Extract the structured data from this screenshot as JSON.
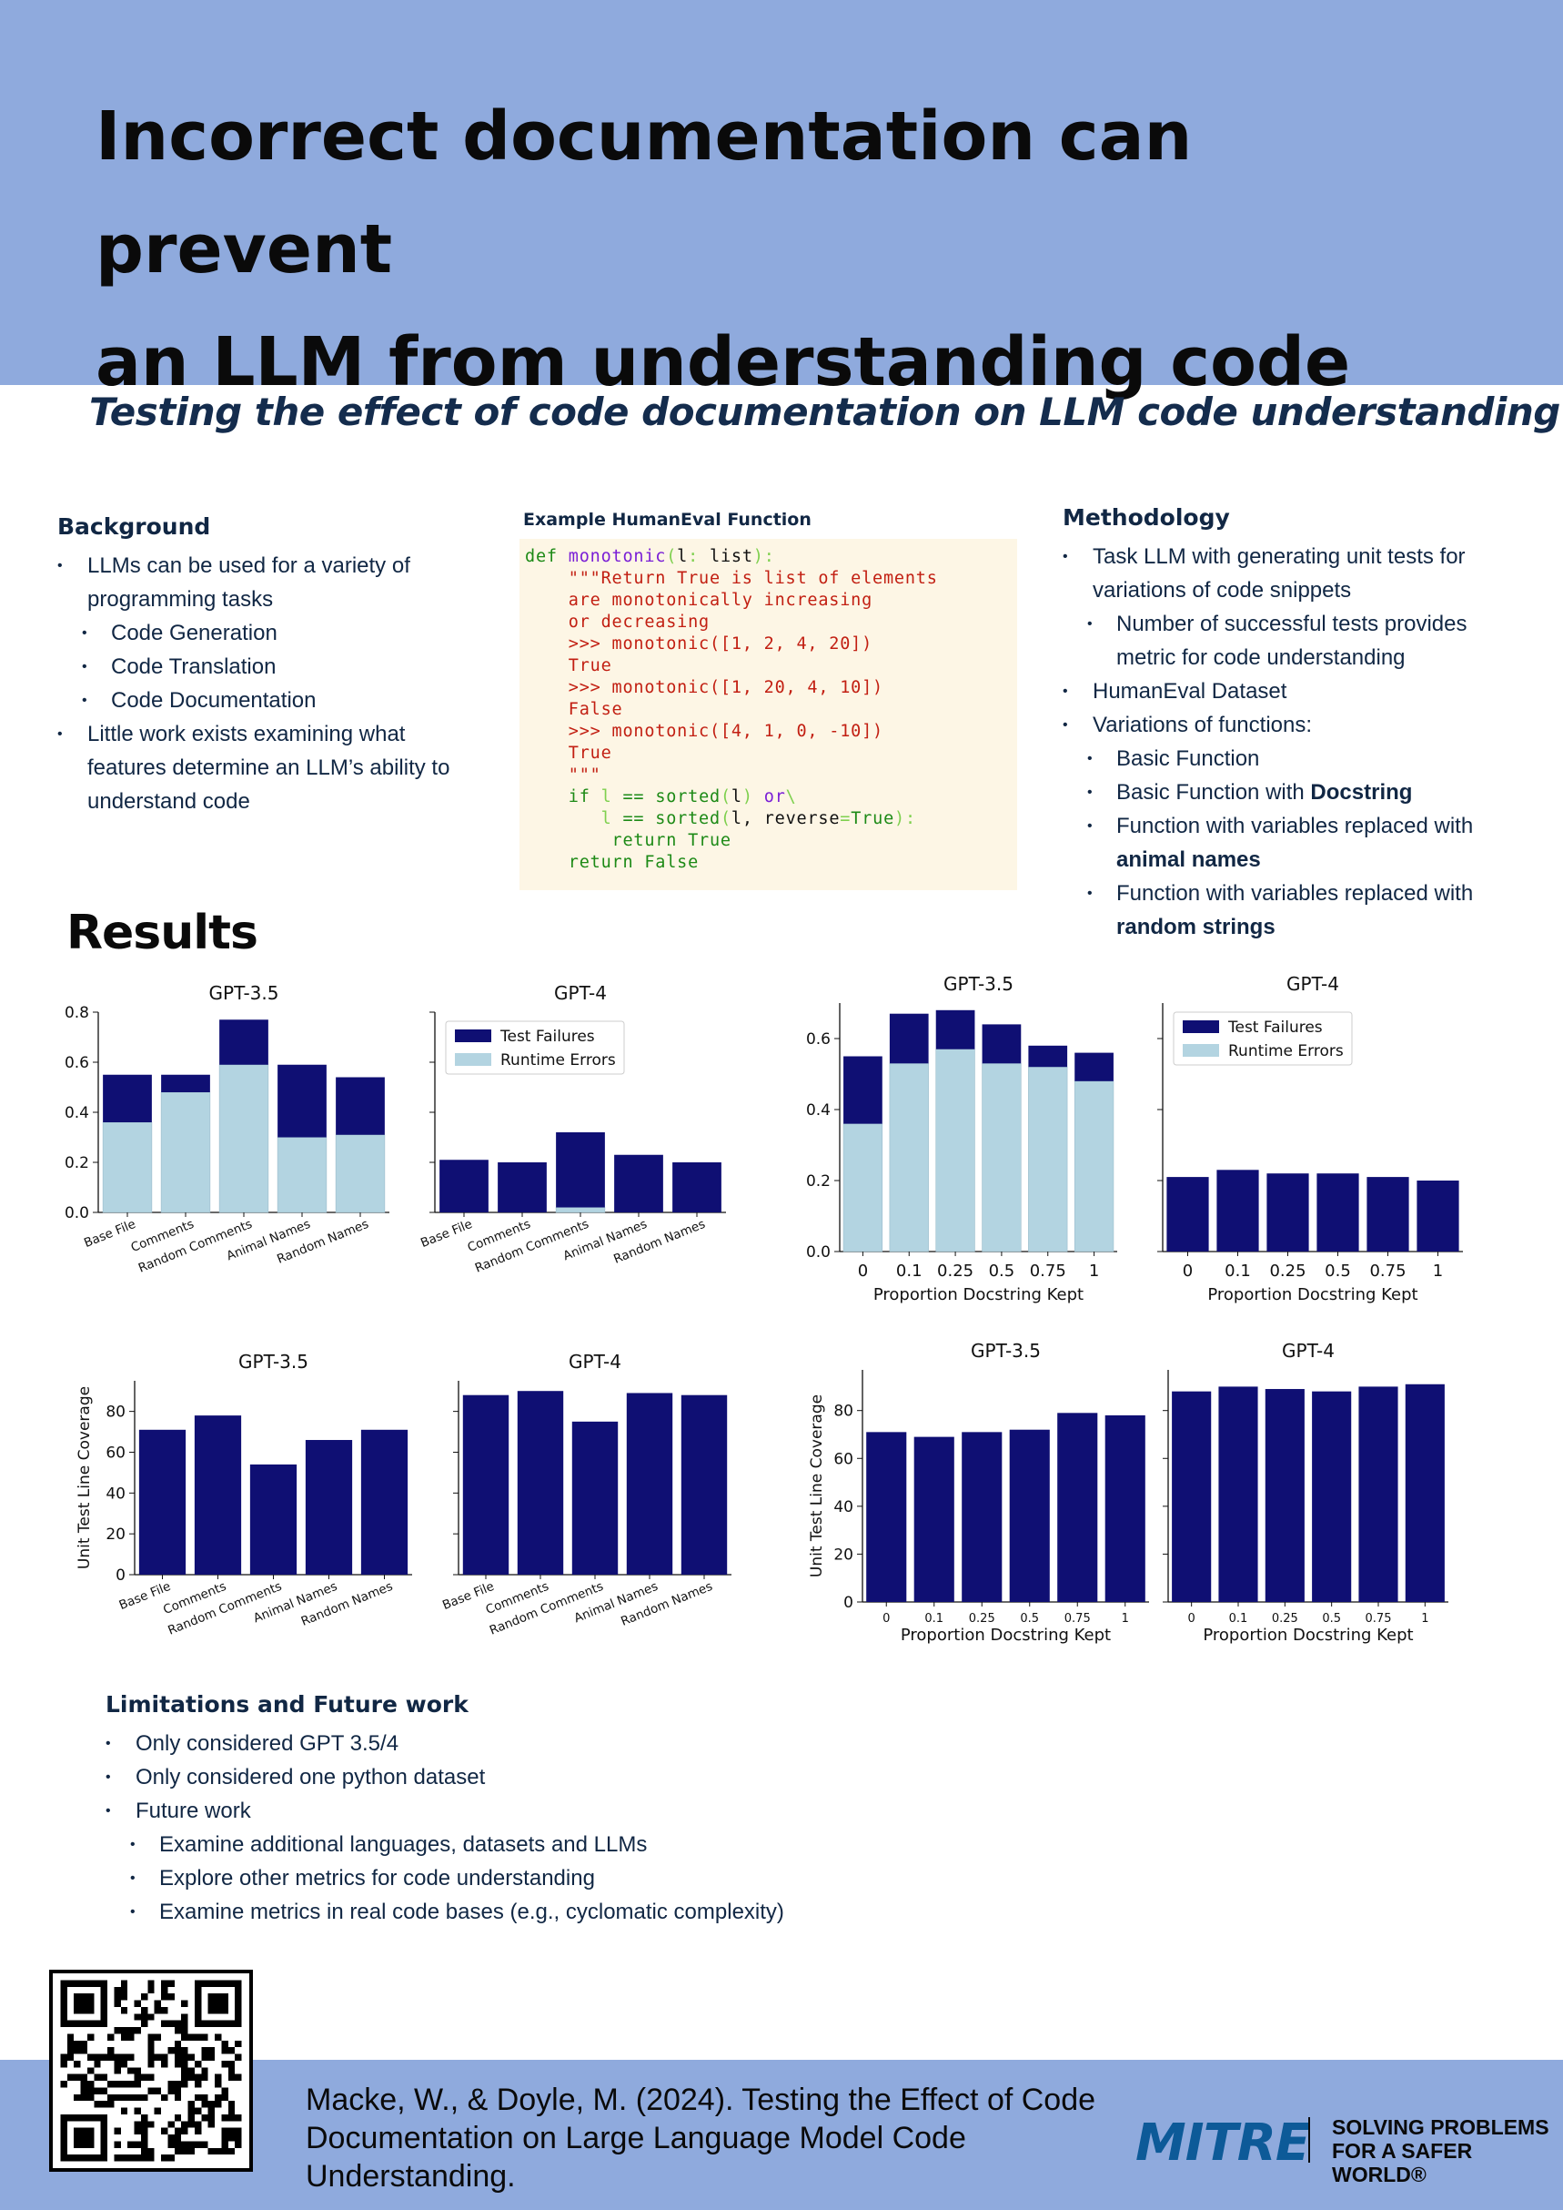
{
  "title": {
    "line1": "Incorrect documentation can prevent",
    "line2": "an LLM from understanding code"
  },
  "subtitle": "Testing the effect of code documentation on LLM code understanding",
  "background": {
    "heading": "Background",
    "b1": "LLMs can be used for a variety of programming tasks",
    "b1_subs": [
      "Code Generation",
      "Code Translation",
      "Code Documentation"
    ],
    "b2": "Little work exists examining what features determine an LLM’s ability to understand code"
  },
  "code_example": {
    "caption": "Example HumanEval Function",
    "def_kw": "def ",
    "fn_name": "monotonic",
    "param_l": "l",
    "param_type": "list",
    "doc_open": "\"\"\"",
    "doc1": "Return True is list of elements",
    "doc2": "are monotonically increasing",
    "doc3": "or decreasing",
    "ex1": ">>> monotonic([1, 2, 4, 20])",
    "r1": "True",
    "ex2": ">>> monotonic([1, 20, 4, 10])",
    "r2": "False",
    "ex3": ">>> monotonic([4, 1, 0, -10])",
    "r3": "True",
    "doc_close": "\"\"\"",
    "if_kw": "if ",
    "cmp": "== ",
    "sorted": "sorted",
    "or_kw": "or",
    "reverse_kw": "reverse",
    "true_kw": "True",
    "return_true": "return True",
    "return_false": "return False"
  },
  "methodology": {
    "heading": "Methodology",
    "b1": "Task LLM with generating unit tests for variations of code snippets",
    "b1_sub": "Number of successful tests provides metric for code understanding",
    "b2": "HumanEval Dataset",
    "b3": "Variations of functions:",
    "v1": "Basic Function",
    "v2_pre": "Basic Function with ",
    "v2_bold": "Docstring",
    "v3_pre": "Function with variables replaced with ",
    "v3_bold": "animal names",
    "v4_pre": "Function with variables replaced with ",
    "v4_bold": "random strings"
  },
  "results_heading": "Results",
  "legend": {
    "failures": "Test Failures",
    "runtime": "Runtime Errors"
  },
  "colors": {
    "failures": "#0f0f73",
    "runtime": "#b3d4e1",
    "header_bg": "#8faadd",
    "text": "#112744",
    "mitre": "#0d5a98"
  },
  "chart_data": [
    {
      "type": "bar",
      "stacked": true,
      "title": "GPT-3.5",
      "categories": [
        "Base File",
        "Comments",
        "Random Comments",
        "Animal Names",
        "Random Names"
      ],
      "series": [
        {
          "name": "Runtime Errors",
          "values": [
            0.36,
            0.48,
            0.59,
            0.3,
            0.31
          ]
        },
        {
          "name": "Test Failures",
          "values": [
            0.19,
            0.07,
            0.18,
            0.29,
            0.23
          ]
        }
      ],
      "ylim": [
        0,
        0.8
      ],
      "yticks": [
        "0.0",
        "0.2",
        "0.4",
        "0.6",
        "0.8"
      ],
      "xlabel": "",
      "ylabel": ""
    },
    {
      "type": "bar",
      "stacked": true,
      "title": "GPT-4",
      "categories": [
        "Base File",
        "Comments",
        "Random Comments",
        "Animal Names",
        "Random Names"
      ],
      "series": [
        {
          "name": "Runtime Errors",
          "values": [
            0.0,
            0.0,
            0.02,
            0.0,
            0.0
          ]
        },
        {
          "name": "Test Failures",
          "values": [
            0.21,
            0.2,
            0.3,
            0.23,
            0.2
          ]
        }
      ],
      "ylim": [
        0,
        0.8
      ],
      "legend": "top-left",
      "xlabel": "",
      "ylabel": ""
    },
    {
      "type": "bar",
      "stacked": true,
      "title": "GPT-3.5",
      "categories": [
        "0",
        "0.1",
        "0.25",
        "0.5",
        "0.75",
        "1"
      ],
      "series": [
        {
          "name": "Runtime Errors",
          "values": [
            0.36,
            0.53,
            0.57,
            0.53,
            0.52,
            0.48
          ]
        },
        {
          "name": "Test Failures",
          "values": [
            0.19,
            0.14,
            0.11,
            0.11,
            0.06,
            0.08
          ]
        }
      ],
      "ylim": [
        0,
        0.7
      ],
      "yticks": [
        "0.0",
        "0.2",
        "0.4",
        "0.6"
      ],
      "xlabel": "Proportion Docstring Kept",
      "ylabel": ""
    },
    {
      "type": "bar",
      "stacked": true,
      "title": "GPT-4",
      "categories": [
        "0",
        "0.1",
        "0.25",
        "0.5",
        "0.75",
        "1"
      ],
      "series": [
        {
          "name": "Runtime Errors",
          "values": [
            0.0,
            0.0,
            0.0,
            0.0,
            0.0,
            0.0
          ]
        },
        {
          "name": "Test Failures",
          "values": [
            0.21,
            0.23,
            0.22,
            0.22,
            0.21,
            0.2
          ]
        }
      ],
      "ylim": [
        0,
        0.7
      ],
      "legend": "top-left",
      "xlabel": "Proportion Docstring Kept",
      "ylabel": ""
    },
    {
      "type": "bar",
      "title": "GPT-3.5",
      "categories": [
        "Base File",
        "Comments",
        "Random Comments",
        "Animal Names",
        "Random Names"
      ],
      "values": [
        71,
        78,
        54,
        66,
        71
      ],
      "ylim": [
        0,
        95
      ],
      "yticks": [
        "0",
        "20",
        "40",
        "60",
        "80"
      ],
      "xlabel": "",
      "ylabel": "Unit Test Line Coverage"
    },
    {
      "type": "bar",
      "title": "GPT-4",
      "categories": [
        "Base File",
        "Comments",
        "Random Comments",
        "Animal Names",
        "Random Names"
      ],
      "values": [
        88,
        90,
        75,
        89,
        88
      ],
      "ylim": [
        0,
        95
      ],
      "xlabel": "",
      "ylabel": ""
    },
    {
      "type": "bar",
      "title": "GPT-3.5",
      "categories": [
        "0",
        "0.1",
        "0.25",
        "0.5",
        "0.75",
        "1"
      ],
      "values": [
        71,
        69,
        71,
        72,
        79,
        78
      ],
      "ylim": [
        0,
        97
      ],
      "yticks": [
        "0",
        "20",
        "40",
        "60",
        "80"
      ],
      "xlabel": "Proportion Docstring Kept",
      "ylabel": "Unit Test Line Coverage"
    },
    {
      "type": "bar",
      "title": "GPT-4",
      "categories": [
        "0",
        "0.1",
        "0.25",
        "0.5",
        "0.75",
        "1"
      ],
      "values": [
        88,
        90,
        89,
        88,
        90,
        91
      ],
      "ylim": [
        0,
        97
      ],
      "xlabel": "Proportion Docstring Kept",
      "ylabel": ""
    }
  ],
  "limitations": {
    "heading": "Limitations and Future work",
    "b1": "Only considered GPT 3.5/4",
    "b2": "Only considered one python dataset",
    "b3": "Future work",
    "subs": [
      "Examine additional languages, datasets and LLMs",
      "Explore other metrics for code understanding",
      "Examine metrics in real code bases (e.g., cyclomatic complexity)"
    ]
  },
  "citation": "Macke, W., & Doyle, M. (2024). Testing the Effect of Code Documentation on Large Language Model Code Understanding.",
  "footer": {
    "logo": "MITRE",
    "tag1": "SOLVING PROBLEMS",
    "tag2": "FOR A SAFER WORLD®"
  }
}
